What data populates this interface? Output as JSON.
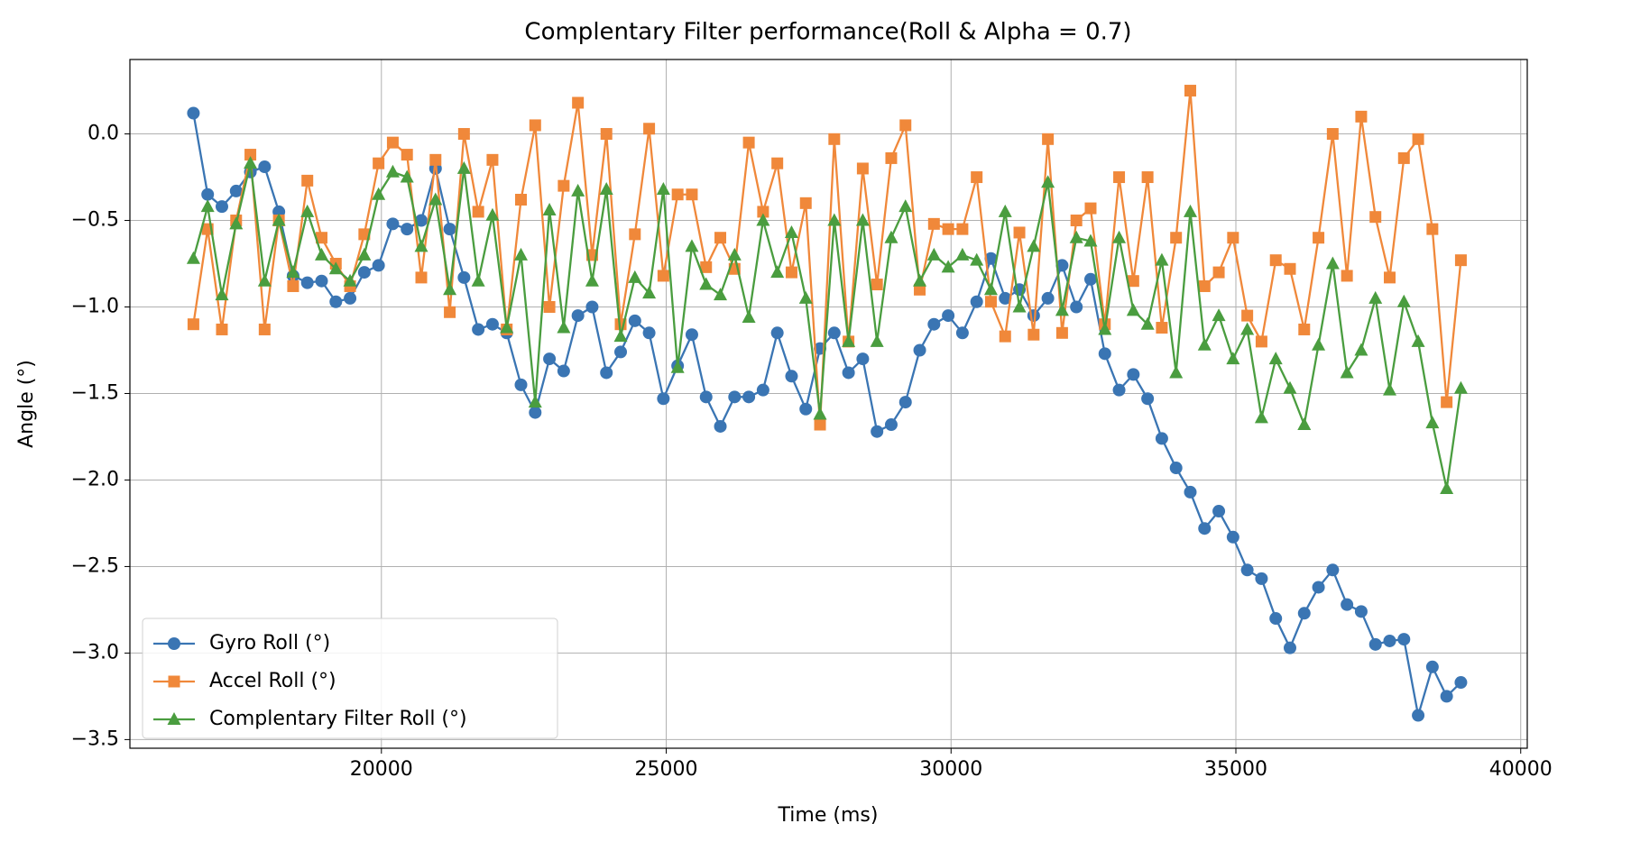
{
  "chart_data": {
    "type": "line",
    "title": "Complentary Filter performance(Roll & Alpha = 0.7)",
    "x_label": "Time (ms)",
    "y_label": "Angle (°)",
    "x": [
      16700,
      16950,
      17200,
      17450,
      17700,
      17950,
      18200,
      18450,
      18700,
      18950,
      19200,
      19450,
      19700,
      19950,
      20200,
      20450,
      20700,
      20950,
      21200,
      21450,
      21700,
      21950,
      22200,
      22450,
      22700,
      22950,
      23200,
      23450,
      23700,
      23950,
      24200,
      24450,
      24700,
      24950,
      25200,
      25450,
      25700,
      25950,
      26200,
      26450,
      26700,
      26950,
      27200,
      27450,
      27700,
      27950,
      28200,
      28450,
      28700,
      28950,
      29200,
      29450,
      29700,
      29950,
      30200,
      30450,
      30700,
      30950,
      31200,
      31450,
      31700,
      31950,
      32200,
      32450,
      32700,
      32950,
      33200,
      33450,
      33700,
      33950,
      34200,
      34450,
      34700,
      34950,
      35200,
      35450,
      35700,
      35950,
      36200,
      36450,
      36700,
      36950,
      37200,
      37450,
      37700,
      37950,
      38200,
      38450,
      38700,
      38950
    ],
    "series": [
      {
        "name": "Gyro Roll (°)",
        "color": "#3a75b3",
        "marker": "circle",
        "values": [
          0.12,
          -0.35,
          -0.42,
          -0.33,
          -0.22,
          -0.19,
          -0.45,
          -0.82,
          -0.86,
          -0.85,
          -0.97,
          -0.95,
          -0.8,
          -0.76,
          -0.52,
          -0.55,
          -0.5,
          -0.2,
          -0.55,
          -0.83,
          -1.13,
          -1.1,
          -1.15,
          -1.45,
          -1.61,
          -1.3,
          -1.37,
          -1.05,
          -1.0,
          -1.38,
          -1.26,
          -1.08,
          -1.15,
          -1.53,
          -1.34,
          -1.16,
          -1.52,
          -1.69,
          -1.52,
          -1.52,
          -1.48,
          -1.15,
          -1.4,
          -1.59,
          -1.24,
          -1.15,
          -1.38,
          -1.3,
          -1.72,
          -1.68,
          -1.55,
          -1.25,
          -1.1,
          -1.05,
          -1.15,
          -0.97,
          -0.72,
          -0.95,
          -0.9,
          -1.05,
          -0.95,
          -0.76,
          -1.0,
          -0.84,
          -1.27,
          -1.48,
          -1.39,
          -1.53,
          -1.76,
          -1.93,
          -2.07,
          -2.28,
          -2.18,
          -2.33,
          -2.52,
          -2.57,
          -2.8,
          -2.97,
          -2.77,
          -2.62,
          -2.52,
          -2.72,
          -2.76,
          -2.95,
          -2.93,
          -2.92,
          -3.36,
          -3.08,
          -3.25,
          -3.17
        ]
      },
      {
        "name": "Accel Roll (°)",
        "color": "#f0883a",
        "marker": "square",
        "values": [
          -1.1,
          -0.55,
          -1.13,
          -0.5,
          -0.12,
          -1.13,
          -0.5,
          -0.88,
          -0.27,
          -0.6,
          -0.75,
          -0.88,
          -0.58,
          -0.17,
          -0.05,
          -0.12,
          -0.83,
          -0.15,
          -1.03,
          0.0,
          -0.45,
          -0.15,
          -1.13,
          -0.38,
          0.05,
          -1.0,
          -0.3,
          0.18,
          -0.7,
          0.0,
          -1.1,
          -0.58,
          0.03,
          -0.82,
          -0.35,
          -0.35,
          -0.77,
          -0.6,
          -0.78,
          -0.05,
          -0.45,
          -0.17,
          -0.8,
          -0.4,
          -1.68,
          -0.03,
          -1.2,
          -0.2,
          -0.87,
          -0.14,
          0.05,
          -0.9,
          -0.52,
          -0.55,
          -0.55,
          -0.25,
          -0.97,
          -1.17,
          -0.57,
          -1.16,
          -0.03,
          -1.15,
          -0.5,
          -0.43,
          -1.1,
          -0.25,
          -0.85,
          -0.25,
          -1.12,
          -0.6,
          0.25,
          -0.88,
          -0.8,
          -0.6,
          -1.05,
          -1.2,
          -0.73,
          -0.78,
          -1.13,
          -0.6,
          0.0,
          -0.82,
          0.1,
          -0.48,
          -0.83,
          -0.14,
          -0.03,
          -0.55,
          -1.55,
          -0.73
        ]
      },
      {
        "name": "Complentary Filter Roll (°)",
        "color": "#4a9d3f",
        "marker": "triangle",
        "values": [
          -0.72,
          -0.42,
          -0.93,
          -0.52,
          -0.17,
          -0.85,
          -0.5,
          -0.8,
          -0.45,
          -0.7,
          -0.78,
          -0.85,
          -0.7,
          -0.35,
          -0.22,
          -0.25,
          -0.65,
          -0.38,
          -0.9,
          -0.2,
          -0.85,
          -0.47,
          -1.12,
          -0.7,
          -1.55,
          -0.44,
          -1.12,
          -0.33,
          -0.85,
          -0.32,
          -1.17,
          -0.83,
          -0.92,
          -0.32,
          -1.35,
          -0.65,
          -0.87,
          -0.93,
          -0.7,
          -1.06,
          -0.5,
          -0.8,
          -0.57,
          -0.95,
          -1.62,
          -0.5,
          -1.2,
          -0.5,
          -1.2,
          -0.6,
          -0.42,
          -0.85,
          -0.7,
          -0.77,
          -0.7,
          -0.73,
          -0.9,
          -0.45,
          -1.0,
          -0.65,
          -0.28,
          -1.02,
          -0.6,
          -0.62,
          -1.13,
          -0.6,
          -1.02,
          -1.1,
          -0.73,
          -1.38,
          -0.45,
          -1.22,
          -1.05,
          -1.3,
          -1.13,
          -1.64,
          -1.3,
          -1.47,
          -1.68,
          -1.22,
          -0.75,
          -1.38,
          -1.25,
          -0.95,
          -1.48,
          -0.97,
          -1.2,
          -1.67,
          -2.05,
          -1.47
        ]
      }
    ],
    "xlim": [
      15585,
      40115
    ],
    "ylim": [
      -3.55,
      0.43
    ],
    "xticks": [
      20000,
      25000,
      30000,
      35000,
      40000
    ],
    "yticks": [
      {
        "value": 0,
        "label": "0.0"
      },
      {
        "value": -0.5,
        "label": "−0.5"
      },
      {
        "value": -1,
        "label": "−1.0"
      },
      {
        "value": -1.5,
        "label": "−1.5"
      },
      {
        "value": -2,
        "label": "−2.0"
      },
      {
        "value": -2.5,
        "label": "−2.5"
      },
      {
        "value": -3,
        "label": "−3.0"
      },
      {
        "value": -3.5,
        "label": "−3.5"
      }
    ],
    "grid": true,
    "legend": "lower left"
  }
}
